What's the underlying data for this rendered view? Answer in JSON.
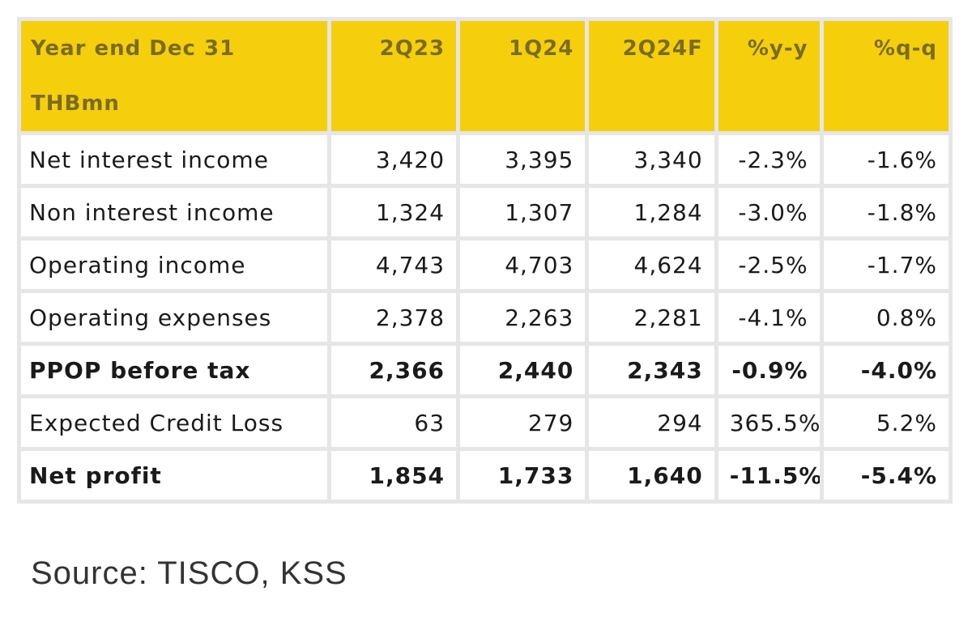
{
  "table": {
    "header": {
      "label_line1": "Year end Dec 31",
      "label_line2": "THBmn",
      "columns": [
        "2Q23",
        "1Q24",
        "2Q24F",
        "%y-y",
        "%q-q"
      ]
    },
    "rows": [
      {
        "label": "Net interest income",
        "values": [
          "3,420",
          "3,395",
          "3,340",
          "-2.3%",
          "-1.6%"
        ],
        "bold": false
      },
      {
        "label": "Non interest income",
        "values": [
          "1,324",
          "1,307",
          "1,284",
          "-3.0%",
          "-1.8%"
        ],
        "bold": false
      },
      {
        "label": "Operating income",
        "values": [
          "4,743",
          "4,703",
          "4,624",
          "-2.5%",
          "-1.7%"
        ],
        "bold": false
      },
      {
        "label": "Operating expenses",
        "values": [
          "2,378",
          "2,263",
          "2,281",
          "-4.1%",
          "0.8%"
        ],
        "bold": false
      },
      {
        "label": "PPOP before tax",
        "values": [
          "2,366",
          "2,440",
          "2,343",
          "-0.9%",
          "-4.0%"
        ],
        "bold": true
      },
      {
        "label": "Expected Credit Loss",
        "values": [
          "63",
          "279",
          "294",
          "365.5%",
          "5.2%"
        ],
        "bold": false
      },
      {
        "label": "Net profit",
        "values": [
          "1,854",
          "1,733",
          "1,640",
          "-11.5%",
          "-5.4%"
        ],
        "bold": true
      }
    ]
  },
  "source": "Source:  TISCO, KSS",
  "colors": {
    "header_bg": "#f5cf0c",
    "header_text": "#7a6c23",
    "grid": "#e6e6e6"
  }
}
